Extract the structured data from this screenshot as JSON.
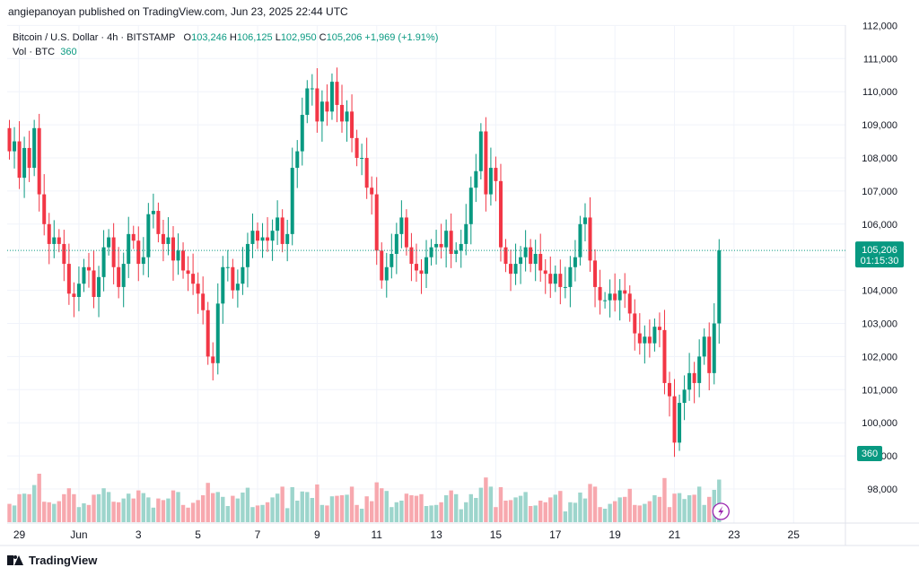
{
  "header": {
    "published_text": "angiepanoyan published on TradingView.com, Jun 23, 2025 22:44 UTC"
  },
  "legend": {
    "symbol": "Bitcoin / U.S. Dollar · 4h · BITSTAMP",
    "open_label": "O",
    "open": "103,246",
    "high_label": "H",
    "high": "106,125",
    "low_label": "L",
    "low": "102,950",
    "close_label": "C",
    "close": "105,206",
    "change": "+1,969 (+1.91%)",
    "vol_label": "Vol · BTC",
    "vol_value": "360"
  },
  "footer": {
    "brand": "TradingView"
  },
  "colors": {
    "up": "#089981",
    "down": "#f23645",
    "vol_up": "#9dd5cc",
    "vol_down": "#f7a8ae",
    "grid": "#f0f3fa",
    "axis_text": "#131722"
  },
  "chart_data": {
    "type": "candlestick",
    "symbol": "Bitcoin / U.S. Dollar",
    "interval": "4h",
    "exchange": "BITSTAMP",
    "y_ticks": [
      98000,
      99000,
      100000,
      101000,
      102000,
      103000,
      104000,
      105000,
      106000,
      107000,
      108000,
      109000,
      110000,
      111000,
      112000
    ],
    "y_tick_labels": [
      "98,000",
      "99,000",
      "100,000",
      "101,000",
      "102,000",
      "103,000",
      "104,000",
      "105,000",
      "106,000",
      "107,000",
      "108,000",
      "109,000",
      "110,000",
      "111,000",
      "112,000"
    ],
    "x_ticks": [
      {
        "label": "29",
        "bar": 2
      },
      {
        "label": "Jun",
        "bar": 14
      },
      {
        "label": "3",
        "bar": 26
      },
      {
        "label": "5",
        "bar": 38
      },
      {
        "label": "7",
        "bar": 50
      },
      {
        "label": "9",
        "bar": 62
      },
      {
        "label": "11",
        "bar": 74
      },
      {
        "label": "13",
        "bar": 86
      },
      {
        "label": "15",
        "bar": 98
      },
      {
        "label": "17",
        "bar": 110
      },
      {
        "label": "19",
        "bar": 122
      },
      {
        "label": "21",
        "bar": 134
      },
      {
        "label": "23",
        "bar": 146
      },
      {
        "label": "25",
        "bar": 158
      }
    ],
    "last_price_label": "105,206",
    "countdown_label": "01:15:30",
    "last_volume_label": "360",
    "ylim": [
      97000,
      112200
    ],
    "close": [
      108200,
      108500,
      107400,
      108300,
      107700,
      108900,
      106900,
      106000,
      105400,
      105600,
      105400,
      104800,
      103900,
      103800,
      104200,
      104700,
      104600,
      103800,
      104400,
      105300,
      105600,
      104700,
      104100,
      104800,
      105700,
      105500,
      104800,
      105000,
      106300,
      106400,
      105700,
      105400,
      105600,
      104900,
      105200,
      104600,
      104500,
      104200,
      103900,
      103400,
      102000,
      101800,
      103600,
      104700,
      104700,
      104000,
      104200,
      104700,
      105400,
      105800,
      105500,
      105600,
      105500,
      105800,
      106200,
      105400,
      105700,
      107700,
      108200,
      109300,
      110100,
      110100,
      109100,
      109700,
      109400,
      110300,
      109600,
      109100,
      109400,
      108600,
      108000,
      108000,
      107100,
      106900,
      105200,
      104300,
      104700,
      105100,
      105700,
      106200,
      105300,
      104800,
      104600,
      104500,
      105000,
      105300,
      105400,
      105300,
      105800,
      105100,
      105200,
      105400,
      106000,
      107100,
      107600,
      108800,
      106900,
      107700,
      107300,
      105300,
      104800,
      104500,
      104800,
      105000,
      105300,
      104800,
      105100,
      104600,
      104500,
      104200,
      104500,
      104100,
      104100,
      104700,
      105000,
      106000,
      106200,
      104900,
      104100,
      103700,
      103700,
      103900,
      103700,
      104000,
      103900,
      103300,
      102700,
      102400,
      102600,
      102400,
      102900,
      102800,
      101200,
      100800,
      99400,
      100600,
      101000,
      101500,
      101200,
      102000,
      102600,
      101500,
      103000,
      105206
    ],
    "volume_note": "volume pane at bottom, green/red bars matching candle direction"
  }
}
